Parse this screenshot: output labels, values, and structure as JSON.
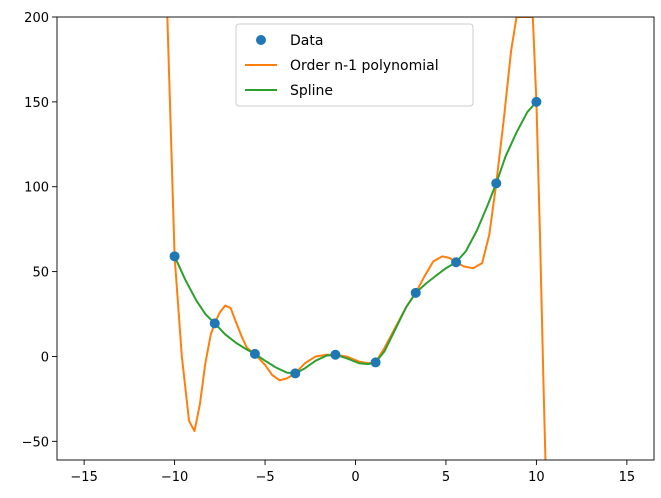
{
  "chart_data": {
    "type": "line",
    "xlim": [
      -16.5,
      16.5
    ],
    "ylim": [
      -61,
      200
    ],
    "xticks": [
      -15,
      -10,
      -5,
      0,
      5,
      10,
      15
    ],
    "yticks": [
      -50,
      0,
      50,
      100,
      150,
      200
    ],
    "xtick_labels": [
      "−15",
      "−10",
      "−5",
      "0",
      "5",
      "10",
      "15"
    ],
    "ytick_labels": [
      "−50",
      "0",
      "50",
      "100",
      "150",
      "200"
    ],
    "grid": false,
    "legend_position": "upper-center",
    "series": [
      {
        "name": "Data",
        "kind": "points",
        "color": "#1f77b4",
        "x": [
          -10,
          -7.78,
          -5.56,
          -3.33,
          -1.11,
          1.11,
          3.33,
          5.56,
          7.78,
          10
        ],
        "y": [
          59,
          19.5,
          1.5,
          -10,
          1,
          -3.5,
          37.5,
          55.5,
          102,
          150
        ]
      },
      {
        "name": "Order n-1 polynomial",
        "kind": "line",
        "color": "#ff7f0e",
        "x": [
          -10.4,
          -10.2,
          -10.0,
          -9.6,
          -9.2,
          -8.9,
          -8.6,
          -8.3,
          -8.0,
          -7.78,
          -7.5,
          -7.2,
          -6.9,
          -6.6,
          -6.3,
          -6.0,
          -5.56,
          -5.0,
          -4.6,
          -4.2,
          -3.8,
          -3.33,
          -2.8,
          -2.2,
          -1.6,
          -1.11,
          -0.5,
          0.2,
          0.7,
          1.11,
          1.6,
          2.2,
          2.8,
          3.33,
          3.8,
          4.3,
          4.8,
          5.2,
          5.56,
          6.0,
          6.5,
          7.0,
          7.4,
          7.78,
          8.2,
          8.6,
          8.9,
          9.0,
          9.4,
          9.6,
          9.8,
          10.0,
          10.2,
          10.4,
          10.5
        ],
        "y": [
          200,
          130,
          59,
          0,
          -38,
          -44,
          -28,
          -4,
          13,
          19.5,
          26,
          30,
          28.5,
          20,
          12,
          5,
          1.5,
          -5,
          -11,
          -14,
          -13,
          -10,
          -4,
          0,
          1,
          1,
          0,
          -3,
          -4,
          -3.5,
          5,
          17,
          29,
          37.5,
          47,
          56,
          59,
          58,
          55.5,
          53,
          52,
          55,
          72,
          102,
          140,
          180,
          200,
          200,
          200,
          200,
          200,
          150,
          70,
          -20,
          -61
        ]
      },
      {
        "name": "Spline",
        "kind": "line",
        "color": "#2ca02c",
        "x": [
          -10,
          -9.4,
          -8.8,
          -8.3,
          -7.78,
          -7.2,
          -6.6,
          -6.0,
          -5.56,
          -5.0,
          -4.4,
          -3.8,
          -3.33,
          -2.8,
          -2.2,
          -1.6,
          -1.11,
          -0.5,
          0.2,
          0.7,
          1.11,
          1.6,
          2.2,
          2.8,
          3.33,
          3.9,
          4.5,
          5.0,
          5.56,
          6.1,
          6.7,
          7.3,
          7.78,
          8.3,
          8.9,
          9.5,
          10
        ],
        "y": [
          59,
          45,
          33,
          25,
          19.5,
          13,
          8,
          4,
          1.5,
          -2.5,
          -6.5,
          -9.5,
          -10,
          -7,
          -2.5,
          0.5,
          1,
          -1,
          -4,
          -4.5,
          -3.5,
          3,
          16,
          29,
          37.5,
          43,
          48,
          52,
          55.5,
          62,
          74,
          89,
          102,
          118,
          132,
          144,
          150
        ]
      }
    ]
  }
}
